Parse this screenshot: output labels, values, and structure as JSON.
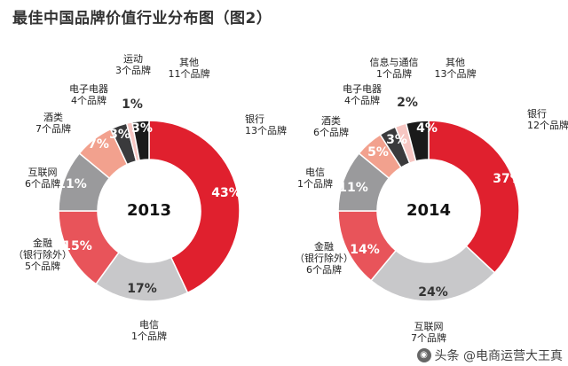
{
  "page_title": "最佳中国品牌价值行业分布图（图2）",
  "watermark": {
    "text": "头条 @电商运营大王真"
  },
  "chart_data": [
    {
      "type": "pie",
      "year_label": "2013",
      "slices": [
        {
          "label": "银行",
          "sub": "13个品牌",
          "value": 43,
          "pct": "43%",
          "color": "#e0202e"
        },
        {
          "label": "电信",
          "sub": "1个品牌",
          "value": 17,
          "pct": "17%",
          "color": "#c8c8ca"
        },
        {
          "label": "金融",
          "label2": "（银行除外）",
          "sub": "5个品牌",
          "value": 15,
          "pct": "15%",
          "color": "#e8545a"
        },
        {
          "label": "互联网",
          "sub": "6个品牌",
          "value": 11,
          "pct": "11%",
          "color": "#9a9a9c"
        },
        {
          "label": "酒类",
          "sub": "7个品牌",
          "value": 7,
          "pct": "7%",
          "color": "#f2a18e"
        },
        {
          "label": "电子电器",
          "sub": "4个品牌",
          "value": 3,
          "pct": "3%",
          "color": "#3a3a3c"
        },
        {
          "label": "运动",
          "sub": "3个品牌",
          "value": 1,
          "pct": "1%",
          "color": "#f7c6c2"
        },
        {
          "label": "其他",
          "sub": "11个品牌",
          "value": 3,
          "pct": "3%",
          "color": "#1a1a1a"
        }
      ]
    },
    {
      "type": "pie",
      "year_label": "2014",
      "slices": [
        {
          "label": "银行",
          "sub": "12个品牌",
          "value": 37,
          "pct": "37%",
          "color": "#e0202e"
        },
        {
          "label": "互联网",
          "sub": "7个品牌",
          "value": 24,
          "pct": "24%",
          "color": "#c8c8ca"
        },
        {
          "label": "金融",
          "label2": "（银行除外）",
          "sub": "6个品牌",
          "value": 14,
          "pct": "14%",
          "color": "#e8545a"
        },
        {
          "label": "电信",
          "sub": "1个品牌",
          "value": 11,
          "pct": "11%",
          "color": "#9a9a9c"
        },
        {
          "label": "酒类",
          "sub": "6个品牌",
          "value": 5,
          "pct": "5%",
          "color": "#f2a18e"
        },
        {
          "label": "电子电器",
          "sub": "4个品牌",
          "value": 3,
          "pct": "3%",
          "color": "#3a3a3c"
        },
        {
          "label": "信息与通信",
          "sub": "1个品牌",
          "value": 2,
          "pct": "2%",
          "color": "#f7c6c2"
        },
        {
          "label": "其他",
          "sub": "13个品牌",
          "value": 4,
          "pct": "4%",
          "color": "#1a1a1a"
        }
      ]
    }
  ]
}
